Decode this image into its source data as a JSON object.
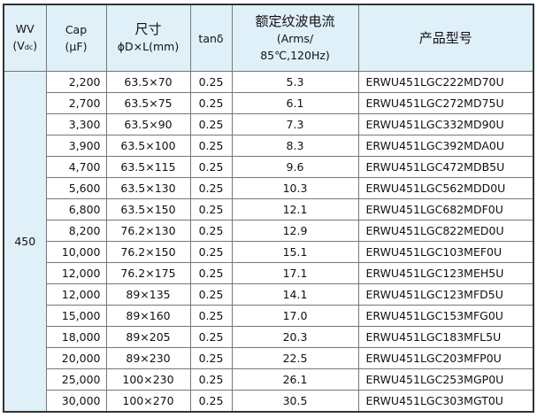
{
  "header": {
    "wv": "WV",
    "wv_unit": "(V",
    "wv_unit_sub": "dc",
    "wv_unit_close": ")",
    "cap": "Cap",
    "cap_unit": "(μF)",
    "size": "尺寸",
    "size_unit": "ϕD×L(mm)",
    "tan": "tanδ",
    "ripple": "额定纹波电流",
    "ripple_unit1": "(Arms/",
    "ripple_unit2": "85℃,120Hz)",
    "part": "产品型号"
  },
  "voltage": "450",
  "rows": [
    {
      "cap": "2,200",
      "size": "63.5×70",
      "tan": "0.25",
      "ripple": "5.3",
      "part": "ERWU451LGC222MD70U"
    },
    {
      "cap": "2,700",
      "size": "63.5×75",
      "tan": "0.25",
      "ripple": "6.1",
      "part": "ERWU451LGC272MD75U"
    },
    {
      "cap": "3,300",
      "size": "63.5×90",
      "tan": "0.25",
      "ripple": "7.3",
      "part": "ERWU451LGC332MD90U"
    },
    {
      "cap": "3,900",
      "size": "63.5×100",
      "tan": "0.25",
      "ripple": "8.3",
      "part": "ERWU451LGC392MDA0U"
    },
    {
      "cap": "4,700",
      "size": "63.5×115",
      "tan": "0.25",
      "ripple": "9.6",
      "part": "ERWU451LGC472MDB5U"
    },
    {
      "cap": "5,600",
      "size": "63.5×130",
      "tan": "0.25",
      "ripple": "10.3",
      "part": "ERWU451LGC562MDD0U"
    },
    {
      "cap": "6,800",
      "size": "63.5×150",
      "tan": "0.25",
      "ripple": "12.1",
      "part": "ERWU451LGC682MDF0U"
    },
    {
      "cap": "8,200",
      "size": "76.2×130",
      "tan": "0.25",
      "ripple": "12.9",
      "part": "ERWU451LGC822MED0U"
    },
    {
      "cap": "10,000",
      "size": "76.2×150",
      "tan": "0.25",
      "ripple": "15.1",
      "part": "ERWU451LGC103MEF0U"
    },
    {
      "cap": "12,000",
      "size": "76.2×175",
      "tan": "0.25",
      "ripple": "17.1",
      "part": "ERWU451LGC123MEH5U"
    },
    {
      "cap": "12,000",
      "size": "89×135",
      "tan": "0.25",
      "ripple": "14.1",
      "part": "ERWU451LGC123MFD5U"
    },
    {
      "cap": "15,000",
      "size": "89×160",
      "tan": "0.25",
      "ripple": "17.0",
      "part": "ERWU451LGC153MFG0U"
    },
    {
      "cap": "18,000",
      "size": "89×205",
      "tan": "0.25",
      "ripple": "20.3",
      "part": "ERWU451LGC183MFL5U"
    },
    {
      "cap": "20,000",
      "size": "89×230",
      "tan": "0.25",
      "ripple": "22.5",
      "part": "ERWU451LGC203MFP0U"
    },
    {
      "cap": "25,000",
      "size": "100×230",
      "tan": "0.25",
      "ripple": "26.1",
      "part": "ERWU451LGC253MGP0U"
    },
    {
      "cap": "30,000",
      "size": "100×270",
      "tan": "0.25",
      "ripple": "30.5",
      "part": "ERWU451LGC303MGT0U"
    }
  ]
}
